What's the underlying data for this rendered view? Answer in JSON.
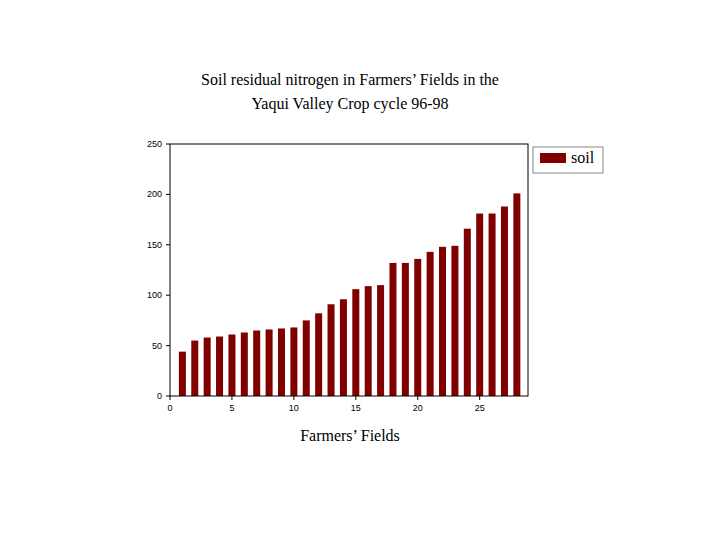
{
  "chart_data": {
    "type": "bar",
    "title": "Soil residual nitrogen in Farmers’ Fields in the\nYaqui Valley Crop cycle 96-98",
    "x_label": "Farmers’ Fields",
    "x": [
      1,
      2,
      3,
      4,
      5,
      6,
      7,
      8,
      9,
      10,
      11,
      12,
      13,
      14,
      15,
      16,
      17,
      18,
      19,
      20,
      21,
      22,
      23,
      24,
      25,
      26,
      27,
      28
    ],
    "series": [
      {
        "name": "soil",
        "color": "#800000",
        "values": [
          44,
          55,
          58,
          59,
          61,
          63,
          65,
          66,
          67,
          68,
          75,
          82,
          91,
          96,
          106,
          109,
          110,
          132,
          132,
          136,
          143,
          148,
          149,
          166,
          181,
          181,
          188,
          201
        ]
      }
    ],
    "xlim": [
      0,
      28.9
    ],
    "xticks": [
      0,
      5,
      10,
      15,
      20,
      25
    ],
    "ylim": [
      0,
      250
    ],
    "yticks": [
      0,
      50,
      100,
      150,
      200,
      250
    ],
    "grid": false,
    "legend": "upper right"
  }
}
